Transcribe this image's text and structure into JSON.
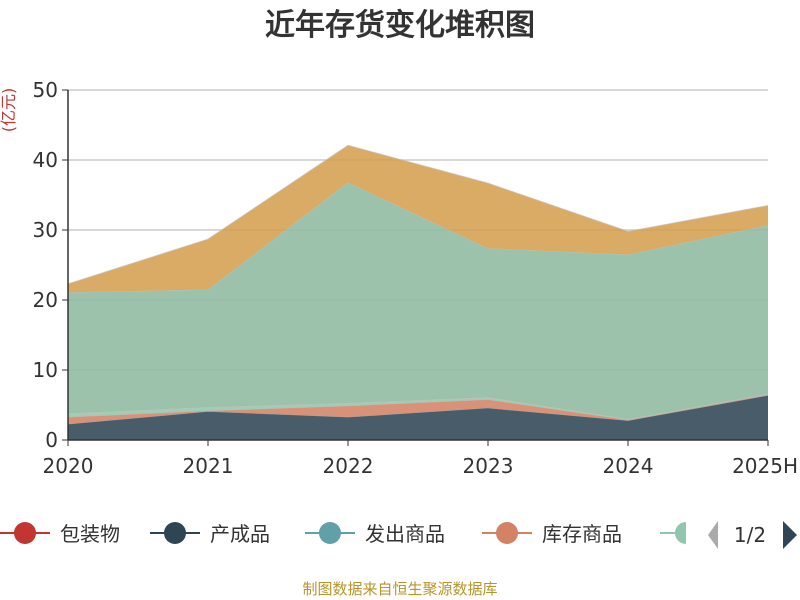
{
  "chart_data": {
    "type": "area",
    "stacked": true,
    "title": "近年存货变化堆积图",
    "ylabel": "(亿元)",
    "xlabel": "",
    "categories": [
      "2020",
      "2021",
      "2022",
      "2023",
      "2024",
      "2025H"
    ],
    "ylim": [
      0,
      50
    ],
    "yticks": [
      0,
      10,
      20,
      30,
      40,
      50
    ],
    "grid": true,
    "series": [
      {
        "name": "包装物",
        "color": "#c23531",
        "values": [
          0,
          0,
          0,
          0,
          0,
          0
        ]
      },
      {
        "name": "产成品",
        "color": "#2f4554",
        "values": [
          2.3,
          4.1,
          3.3,
          4.6,
          2.8,
          6.4
        ]
      },
      {
        "name": "发出商品",
        "color": "#61a0a8",
        "values": [
          0,
          0,
          0,
          0,
          0,
          0
        ]
      },
      {
        "name": "库存商品",
        "color": "#d48265",
        "values": [
          1.0,
          0.1,
          1.6,
          1.2,
          0.1,
          0.1
        ]
      },
      {
        "name": "",
        "color": "#91c7ae",
        "values": [
          0.5,
          0.5,
          0.4,
          0.3,
          0.1,
          0.1
        ]
      },
      {
        "name": "",
        "color": "#8fb9a0",
        "values": [
          17.3,
          16.8,
          31.5,
          21.3,
          23.5,
          24.1
        ]
      },
      {
        "name": "",
        "color": "#d49f50",
        "values": [
          1.2,
          7.2,
          5.3,
          9.3,
          3.3,
          2.8
        ]
      }
    ],
    "legend": {
      "position": "bottom",
      "page": "1/2",
      "visible_items": [
        "包装物",
        "产成品",
        "发出商品",
        "库存商品"
      ]
    }
  },
  "source_text": "制图数据来自恒生聚源数据库"
}
